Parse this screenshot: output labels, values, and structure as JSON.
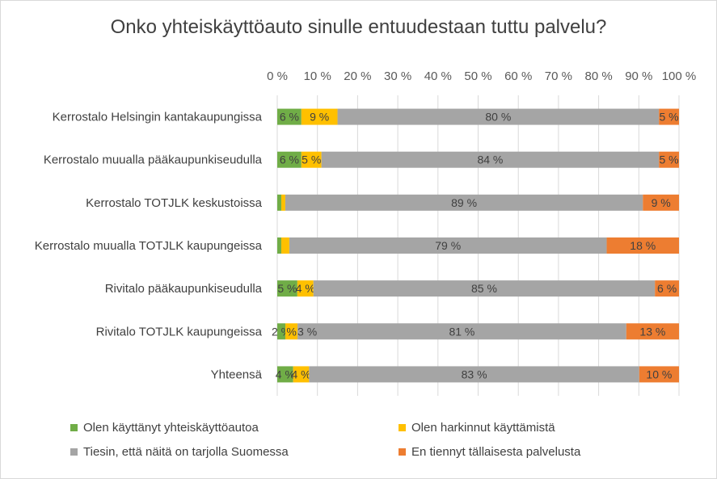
{
  "chart_data": {
    "type": "bar",
    "orientation": "horizontal",
    "stacked": "percent",
    "title": "Onko yhteiskäyttöauto sinulle entuudestaan tuttu palvelu?",
    "xlabel": "",
    "ylabel": "",
    "xlim": [
      0,
      100
    ],
    "x_ticks": [
      "0 %",
      "10 %",
      "20 %",
      "30 %",
      "40 %",
      "50 %",
      "60 %",
      "70 %",
      "80 %",
      "90 %",
      "100 %"
    ],
    "grid": "vertical",
    "legend_position": "bottom",
    "categories": [
      "Kerrostalo Helsingin kantakaupungissa",
      "Kerrostalo muualla pääkaupunkiseudulla",
      "Kerrostalo TOTJLK keskustoissa",
      "Kerrostalo muualla TOTJLK kaupungeissa",
      "Rivitalo pääkaupunkiseudulla",
      "Rivitalo TOTJLK kaupungeissa",
      "Yhteensä"
    ],
    "series": [
      {
        "name": "Olen käyttänyt yhteiskäyttöautoa",
        "color": "#70ad47",
        "values": [
          6,
          6,
          1,
          1,
          5,
          2,
          4
        ],
        "labels": [
          "6 %",
          "6 %",
          "",
          "",
          "5 %",
          "2 %",
          "4 %"
        ]
      },
      {
        "name": "Olen harkinnut käyttämistä",
        "color": "#ffc000",
        "values": [
          9,
          5,
          1,
          2,
          4,
          3,
          4
        ],
        "labels": [
          "9 %",
          "5 %",
          "",
          "",
          "4 %",
          "%",
          "4 %"
        ]
      },
      {
        "name": "Tiesin, että näitä on tarjolla Suomessa",
        "color": "#a5a5a5",
        "values": [
          80,
          84,
          89,
          79,
          85,
          81,
          83
        ],
        "labels": [
          "80 %",
          "84 %",
          "89 %",
          "79 %",
          "85 %",
          "81 %",
          "83 %"
        ]
      },
      {
        "name": "En tiennyt tällaisesta palvelusta",
        "color": "#ed7d31",
        "values": [
          5,
          5,
          9,
          18,
          6,
          13,
          10
        ],
        "labels": [
          "5 %",
          "5 %",
          "9 %",
          "18 %",
          "6 %",
          "13 %",
          "10 %"
        ]
      }
    ],
    "extra_labels": [
      {
        "category_index": 5,
        "series_index": 2,
        "text": "3 %",
        "position": "left"
      }
    ]
  }
}
